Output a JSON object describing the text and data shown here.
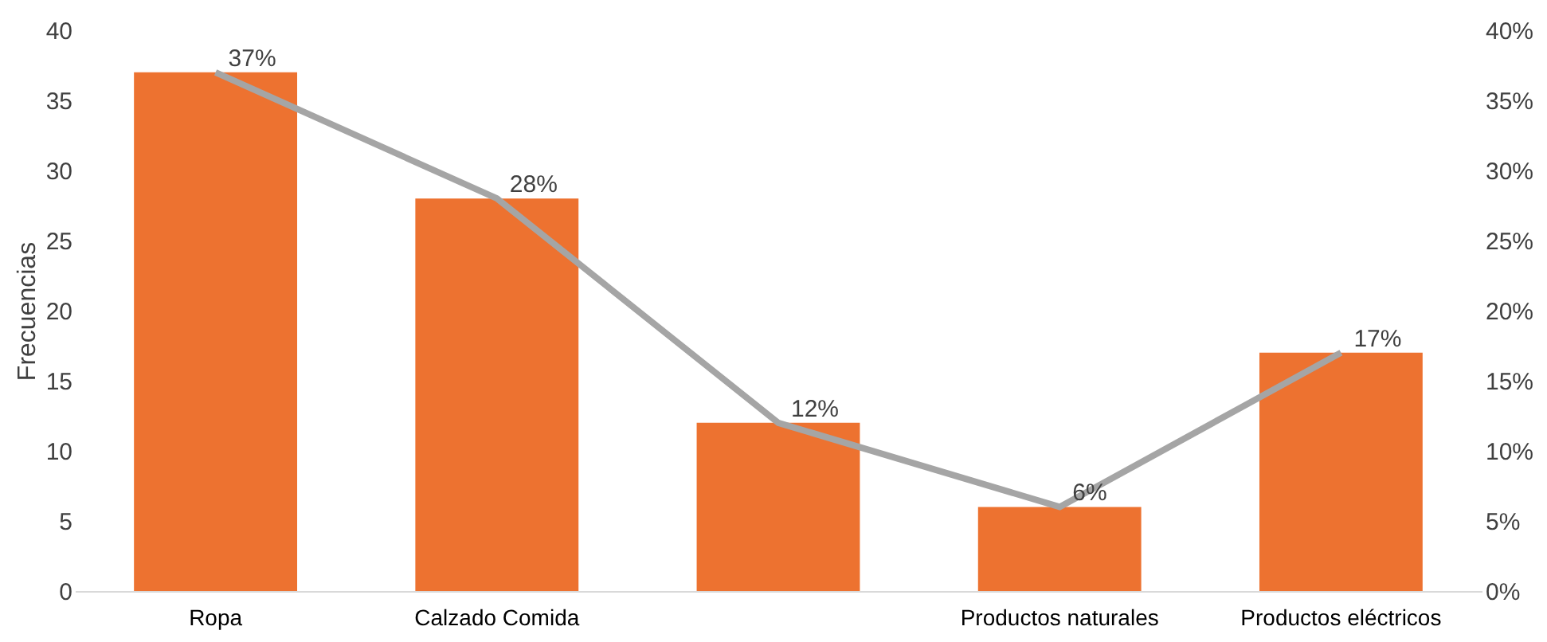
{
  "chart_data": {
    "type": "bar",
    "ylabel": "Frecuencias",
    "categories": [
      "Ropa",
      "Calzado Comida",
      null,
      "Productos naturales",
      "Productos eléctricos"
    ],
    "series": [
      {
        "color": "#ed7230",
        "values": [
          37,
          28,
          12,
          6,
          17
        ]
      },
      {
        "type": "line",
        "axis": "y2",
        "color": "#a5a5a5",
        "values": [
          37,
          28,
          12,
          6,
          17
        ],
        "value_labels": [
          "37%",
          "28%",
          "12%",
          "6%",
          "17%"
        ],
        "marker": "none",
        "line_style": "solid"
      }
    ],
    "ylim": [
      0,
      40
    ],
    "yticks": [
      0,
      5,
      10,
      15,
      20,
      25,
      30,
      35,
      40
    ],
    "y2lim": [
      0,
      40
    ],
    "y2ticks": [
      {
        "value": 0,
        "label": "0%"
      },
      {
        "value": 5,
        "label": "5%"
      },
      {
        "value": 10,
        "label": "10%"
      },
      {
        "value": 15,
        "label": "15%"
      },
      {
        "value": 20,
        "label": "20%"
      },
      {
        "value": 25,
        "label": "25%"
      },
      {
        "value": 30,
        "label": "30%"
      },
      {
        "value": 35,
        "label": "35%"
      },
      {
        "value": 40,
        "label": "40%"
      }
    ],
    "grid": false
  }
}
